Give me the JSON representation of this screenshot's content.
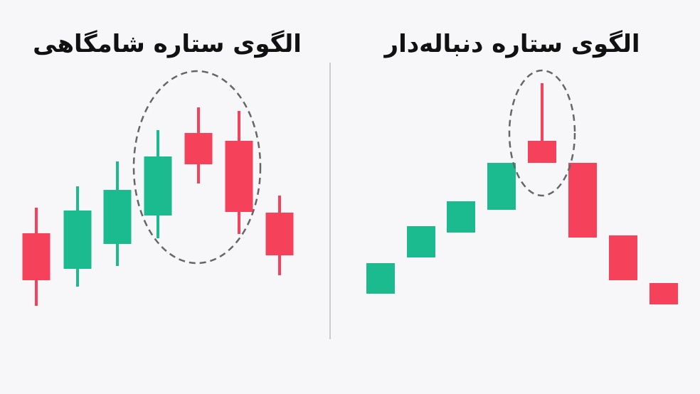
{
  "colors": {
    "bullish": "#1cba8f",
    "bearish": "#f5415a",
    "background": "#f7f7f9",
    "highlight": "#666666",
    "divider": "#cccccc"
  },
  "left_panel": {
    "title": "الگوی ستاره شامگاهی",
    "candles": [
      "bearish",
      "bullish",
      "bullish",
      "bullish",
      "bearish",
      "bearish",
      "bearish"
    ]
  },
  "right_panel": {
    "title": "الگوی ستاره دنباله‌دار",
    "candles": [
      "bullish",
      "bullish",
      "bullish",
      "bullish",
      "bearish",
      "bearish",
      "bearish",
      "bearish"
    ]
  }
}
